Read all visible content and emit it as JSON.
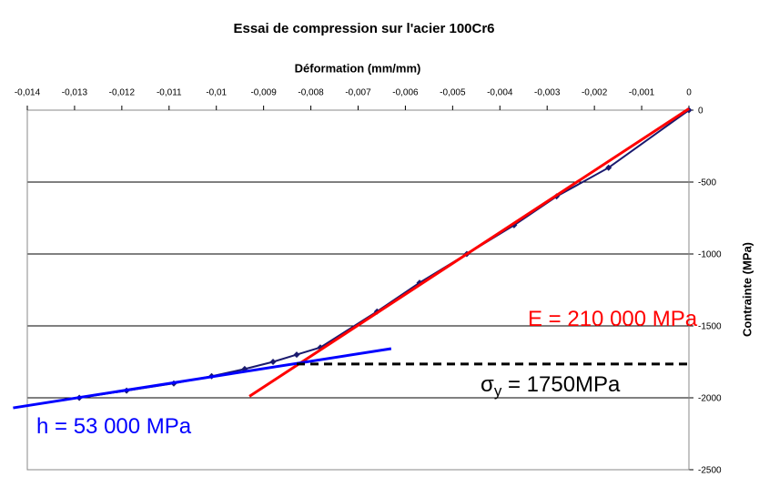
{
  "chart_data": {
    "type": "line",
    "title": "Essai de compression sur l'acier 100Cr6",
    "x_label": "Déformation (mm/mm)",
    "y_label": "Contrainte (MPa)",
    "xlim": [
      -0.014,
      0
    ],
    "ylim": [
      -2500,
      0
    ],
    "xticks": [
      {
        "value": -0.014,
        "label": "-0,014"
      },
      {
        "value": -0.013,
        "label": "-0,013"
      },
      {
        "value": -0.012,
        "label": "-0,012"
      },
      {
        "value": -0.011,
        "label": "-0,011"
      },
      {
        "value": -0.01,
        "label": "-0,01"
      },
      {
        "value": -0.009,
        "label": "-0,009"
      },
      {
        "value": -0.008,
        "label": "-0,008"
      },
      {
        "value": -0.007,
        "label": "-0,007"
      },
      {
        "value": -0.006,
        "label": "-0,006"
      },
      {
        "value": -0.005,
        "label": "-0,005"
      },
      {
        "value": -0.004,
        "label": "-0,004"
      },
      {
        "value": -0.003,
        "label": "-0,003"
      },
      {
        "value": -0.002,
        "label": "-0,002"
      },
      {
        "value": -0.001,
        "label": "-0,001"
      },
      0
    ],
    "yticks": [
      0,
      -500,
      -1000,
      -1500,
      -2000,
      -2500
    ],
    "grid": true,
    "series": [
      {
        "color": "#1a1a6e",
        "marker": "diamond",
        "x": [
          0,
          -0.0017,
          -0.0028,
          -0.0037,
          -0.0047,
          -0.0057,
          -0.0066,
          -0.0078,
          -0.0083,
          -0.0088,
          -0.0094,
          -0.0101,
          -0.0109,
          -0.0119,
          -0.0129
        ],
        "values": [
          0,
          -400,
          -600,
          -800,
          -1000,
          -1200,
          -1400,
          -1650,
          -1700,
          -1750,
          -1800,
          -1850,
          -1900,
          -1950,
          -2000
        ]
      },
      {
        "color": "#ff0000",
        "x": [
          -0.0093,
          0
        ],
        "values": [
          -1990,
          10
        ]
      },
      {
        "color": "#0000ff",
        "x": [
          -0.0143,
          -0.0063
        ],
        "values": [
          -2070,
          -1658
        ]
      },
      {
        "color": "#000000",
        "dash": true,
        "x": [
          -0.0083,
          0
        ],
        "values": [
          -1765,
          -1765
        ]
      }
    ],
    "annotations": [
      {
        "text": "E = 210 000 MPa",
        "color": "#ff0000"
      },
      {
        "text": "σ",
        "subscript": "y",
        "text2": " = 1750MPa",
        "color": "#000000"
      },
      {
        "text": "h = 53 000 MPa",
        "color": "#0000ff"
      }
    ]
  }
}
